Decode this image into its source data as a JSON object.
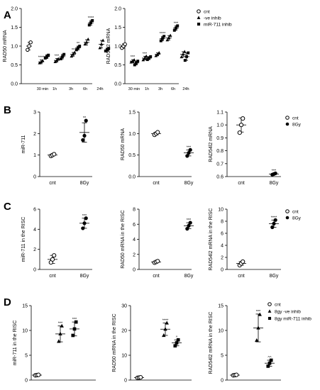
{
  "colors": {
    "ink": "#000000",
    "background": "#ffffff"
  },
  "panel_labels": [
    "A",
    "B",
    "C",
    "D"
  ],
  "legends": [
    {
      "entries": [
        {
          "label": "cnt",
          "marker": "circle-open"
        },
        {
          "label": "-ve inhib",
          "marker": "triangle"
        },
        {
          "label": "miR-711 inhib",
          "marker": "square"
        }
      ]
    },
    {
      "entries": [
        {
          "label": "cnt",
          "marker": "circle-open"
        },
        {
          "label": "8Gy",
          "marker": "circle"
        }
      ]
    },
    {
      "entries": [
        {
          "label": "cnt",
          "marker": "circle-open"
        },
        {
          "label": "8Gy",
          "marker": "circle"
        }
      ]
    },
    {
      "entries": [
        {
          "label": "cnt",
          "marker": "circle-open"
        },
        {
          "label": "8gy -ve inhib",
          "marker": "triangle"
        },
        {
          "label": "8gy miR-711 inhib",
          "marker": "square"
        }
      ]
    }
  ],
  "chart_data": [
    {
      "type": "scatter",
      "ylabel": "RAD50 mRNA",
      "ylim": [
        0,
        2
      ],
      "yticks": [
        "0.0",
        "0.5",
        "1.0",
        "1.5",
        "2.0"
      ],
      "categories": [
        "",
        "30 min",
        "1h",
        "3h",
        "6h",
        "24h"
      ],
      "groups": [
        {
          "marker": "circle-open",
          "mean": 1.0,
          "sd": 0.1,
          "points": [
            0.9,
            1.0,
            1.1
          ],
          "sig": ""
        },
        {
          "marker": "triangle",
          "mean": 0.58,
          "sd": 0.05,
          "points": [
            0.55,
            0.58,
            0.61
          ],
          "sig": "****"
        },
        {
          "marker": "square",
          "mean": 0.72,
          "sd": 0.05,
          "points": [
            0.68,
            0.72,
            0.76
          ],
          "sig": ""
        },
        {
          "marker": "triangle",
          "mean": 0.62,
          "sd": 0.05,
          "points": [
            0.58,
            0.62,
            0.66
          ],
          "sig": "***"
        },
        {
          "marker": "square",
          "mean": 0.72,
          "sd": 0.06,
          "points": [
            0.66,
            0.72,
            0.78
          ],
          "sig": ""
        },
        {
          "marker": "triangle",
          "mean": 0.78,
          "sd": 0.05,
          "points": [
            0.73,
            0.78,
            0.83
          ],
          "sig": "**"
        },
        {
          "marker": "square",
          "mean": 0.95,
          "sd": 0.05,
          "points": [
            0.9,
            0.95,
            1.0
          ],
          "sig": "**"
        },
        {
          "marker": "triangle",
          "mean": 1.1,
          "sd": 0.07,
          "points": [
            1.05,
            1.1,
            1.18
          ],
          "sig": ""
        },
        {
          "marker": "square",
          "mean": 1.62,
          "sd": 0.06,
          "points": [
            1.56,
            1.62,
            1.68
          ],
          "sig": "****"
        },
        {
          "marker": "triangle",
          "mean": 1.05,
          "sd": 0.1,
          "points": [
            0.95,
            1.05,
            1.15
          ],
          "sig": ""
        },
        {
          "marker": "square",
          "mean": 0.9,
          "sd": 0.04,
          "points": [
            0.87,
            0.9,
            0.94
          ],
          "sig": ""
        }
      ]
    },
    {
      "type": "scatter",
      "ylabel": "RAD54l2 mRNA",
      "ylim": [
        0,
        2
      ],
      "yticks": [
        "0.0",
        "0.5",
        "1.0",
        "1.5",
        "2.0"
      ],
      "categories": [
        "",
        "30 min",
        "1h",
        "3h",
        "6h",
        "24h"
      ],
      "groups": [
        {
          "marker": "circle-open",
          "mean": 1.0,
          "sd": 0.06,
          "points": [
            0.95,
            1.0,
            1.05
          ],
          "sig": ""
        },
        {
          "marker": "triangle",
          "mean": 0.6,
          "sd": 0.04,
          "points": [
            0.57,
            0.6,
            0.63
          ],
          "sig": "***"
        },
        {
          "marker": "square",
          "mean": 0.55,
          "sd": 0.05,
          "points": [
            0.5,
            0.55,
            0.6
          ],
          "sig": ""
        },
        {
          "marker": "triangle",
          "mean": 0.68,
          "sd": 0.05,
          "points": [
            0.63,
            0.68,
            0.73
          ],
          "sig": "***"
        },
        {
          "marker": "square",
          "mean": 0.68,
          "sd": 0.04,
          "points": [
            0.64,
            0.68,
            0.72
          ],
          "sig": ""
        },
        {
          "marker": "triangle",
          "mean": 0.78,
          "sd": 0.04,
          "points": [
            0.74,
            0.78,
            0.82
          ],
          "sig": ""
        },
        {
          "marker": "square",
          "mean": 1.2,
          "sd": 0.06,
          "points": [
            1.14,
            1.2,
            1.26
          ],
          "sig": "****"
        },
        {
          "marker": "triangle",
          "mean": 1.22,
          "sd": 0.06,
          "points": [
            1.16,
            1.22,
            1.28
          ],
          "sig": ""
        },
        {
          "marker": "square",
          "mean": 1.48,
          "sd": 0.06,
          "points": [
            1.42,
            1.48,
            1.54
          ],
          "sig": "***"
        },
        {
          "marker": "triangle",
          "mean": 0.78,
          "sd": 0.07,
          "points": [
            0.71,
            0.78,
            0.85
          ],
          "sig": ""
        },
        {
          "marker": "square",
          "mean": 0.72,
          "sd": 0.1,
          "points": [
            0.62,
            0.72,
            0.82
          ],
          "sig": ""
        }
      ]
    },
    {
      "type": "scatter",
      "ylabel": "miR-711",
      "ylim": [
        0,
        3
      ],
      "yticks": [
        "0",
        "1",
        "2",
        "3"
      ],
      "categories": [
        "cnt",
        "8Gy"
      ],
      "groups": [
        {
          "marker": "circle-open",
          "mean": 1.0,
          "sd": 0.04,
          "points": [
            0.96,
            1.0,
            1.04
          ],
          "sig": ""
        },
        {
          "marker": "circle",
          "mean": 2.05,
          "sd": 0.45,
          "points": [
            1.7,
            1.9,
            2.6
          ],
          "sig": "**"
        }
      ]
    },
    {
      "type": "scatter",
      "ylabel": "RAD50 mRNA",
      "ylim": [
        0,
        1.5
      ],
      "yticks": [
        "0.0",
        "0.5",
        "1.0",
        "1.5"
      ],
      "categories": [
        "cnt",
        "8Gy"
      ],
      "groups": [
        {
          "marker": "circle-open",
          "mean": 1.0,
          "sd": 0.03,
          "points": [
            0.97,
            1.0,
            1.03
          ],
          "sig": ""
        },
        {
          "marker": "circle",
          "mean": 0.55,
          "sd": 0.07,
          "points": [
            0.48,
            0.55,
            0.62
          ],
          "sig": "***"
        }
      ]
    },
    {
      "type": "scatter",
      "ylabel": "RAD54l2 mRNA",
      "ylim": [
        0.6,
        1.1
      ],
      "yticks": [
        "0.6",
        "0.7",
        "0.8",
        "0.9",
        "1.0",
        "1.1"
      ],
      "categories": [
        "cnt",
        "8Gy"
      ],
      "groups": [
        {
          "marker": "circle-open",
          "mean": 1.0,
          "sd": 0.055,
          "points": [
            0.94,
            1.0,
            1.05
          ],
          "sig": ""
        },
        {
          "marker": "circle",
          "mean": 0.62,
          "sd": 0.005,
          "points": [
            0.615,
            0.62,
            0.625
          ],
          "sig": "***"
        }
      ]
    },
    {
      "type": "scatter",
      "ylabel": "miR-711 in the RISC",
      "ylim": [
        0,
        6
      ],
      "yticks": [
        "0",
        "2",
        "4",
        "6"
      ],
      "categories": [
        "cnt",
        "8Gy"
      ],
      "groups": [
        {
          "marker": "circle-open",
          "mean": 1.0,
          "sd": 0.4,
          "points": [
            0.7,
            1.0,
            1.4
          ],
          "sig": ""
        },
        {
          "marker": "circle",
          "mean": 4.6,
          "sd": 0.5,
          "points": [
            4.1,
            4.6,
            5.1
          ],
          "sig": "***"
        }
      ]
    },
    {
      "type": "scatter",
      "ylabel": "RAD50 mRNA in the RISC",
      "ylim": [
        0,
        8
      ],
      "yticks": [
        "0",
        "2",
        "4",
        "6",
        "8"
      ],
      "categories": [
        "cnt",
        "8Gy"
      ],
      "groups": [
        {
          "marker": "circle-open",
          "mean": 1.0,
          "sd": 0.1,
          "points": [
            0.9,
            1.0,
            1.1
          ],
          "sig": ""
        },
        {
          "marker": "circle",
          "mean": 5.8,
          "sd": 0.4,
          "points": [
            5.4,
            5.8,
            6.2
          ],
          "sig": "***"
        }
      ]
    },
    {
      "type": "scatter",
      "ylabel": "RAD54l2 mRNA in the RISC",
      "ylim": [
        0,
        10
      ],
      "yticks": [
        "0",
        "2",
        "4",
        "6",
        "8",
        "10"
      ],
      "categories": [
        "cnt",
        "8Gy"
      ],
      "groups": [
        {
          "marker": "circle-open",
          "mean": 1.0,
          "sd": 0.3,
          "points": [
            0.7,
            1.0,
            1.3
          ],
          "sig": ""
        },
        {
          "marker": "circle",
          "mean": 7.6,
          "sd": 0.6,
          "points": [
            7.0,
            7.6,
            8.2
          ],
          "sig": "****"
        }
      ]
    },
    {
      "type": "scatter",
      "ylabel": "miR-711 in the RISC",
      "ylim": [
        0,
        15
      ],
      "yticks": [
        "0",
        "5",
        "10",
        "15"
      ],
      "categories": [],
      "groups": [
        {
          "marker": "circle-open",
          "mean": 1.0,
          "sd": 0.05,
          "points": [
            0.95,
            1.0,
            1.05
          ],
          "sig": ""
        },
        {
          "marker": "triangle",
          "mean": 9.3,
          "sd": 1.6,
          "points": [
            7.8,
            9.3,
            10.9
          ],
          "sig": "***"
        },
        {
          "marker": "square",
          "mean": 10.3,
          "sd": 1.4,
          "points": [
            9.0,
            10.3,
            11.7
          ],
          "sig": "***"
        }
      ]
    },
    {
      "type": "scatter",
      "ylabel": "RAD50 mRNA in the RISC",
      "ylim": [
        0,
        30
      ],
      "yticks": [
        "0",
        "10",
        "20",
        "30"
      ],
      "categories": [],
      "groups": [
        {
          "marker": "circle-open",
          "mean": 1.0,
          "sd": 0.1,
          "points": [
            0.9,
            1.0,
            1.1
          ],
          "sig": ""
        },
        {
          "marker": "triangle",
          "mean": 20.5,
          "sd": 2.5,
          "points": [
            18.0,
            20.5,
            23.0
          ],
          "sig": "****"
        },
        {
          "marker": "square",
          "mean": 15.0,
          "sd": 1.2,
          "points": [
            13.8,
            15.0,
            16.2
          ],
          "sig": "^"
        }
      ]
    },
    {
      "type": "scatter",
      "ylabel": "RAD54l2 mRNA in the RISC",
      "ylim": [
        0,
        15
      ],
      "yticks": [
        "0",
        "5",
        "10",
        "15"
      ],
      "categories": [],
      "groups": [
        {
          "marker": "circle-open",
          "mean": 1.0,
          "sd": 0.05,
          "points": [
            0.95,
            1.0,
            1.05
          ],
          "sig": ""
        },
        {
          "marker": "triangle",
          "mean": 10.5,
          "sd": 2.8,
          "points": [
            8.0,
            10.5,
            13.2
          ],
          "sig": "***"
        },
        {
          "marker": "square",
          "mean": 3.4,
          "sd": 0.6,
          "points": [
            2.8,
            3.4,
            4.0
          ],
          "sig": "^^"
        }
      ]
    }
  ]
}
